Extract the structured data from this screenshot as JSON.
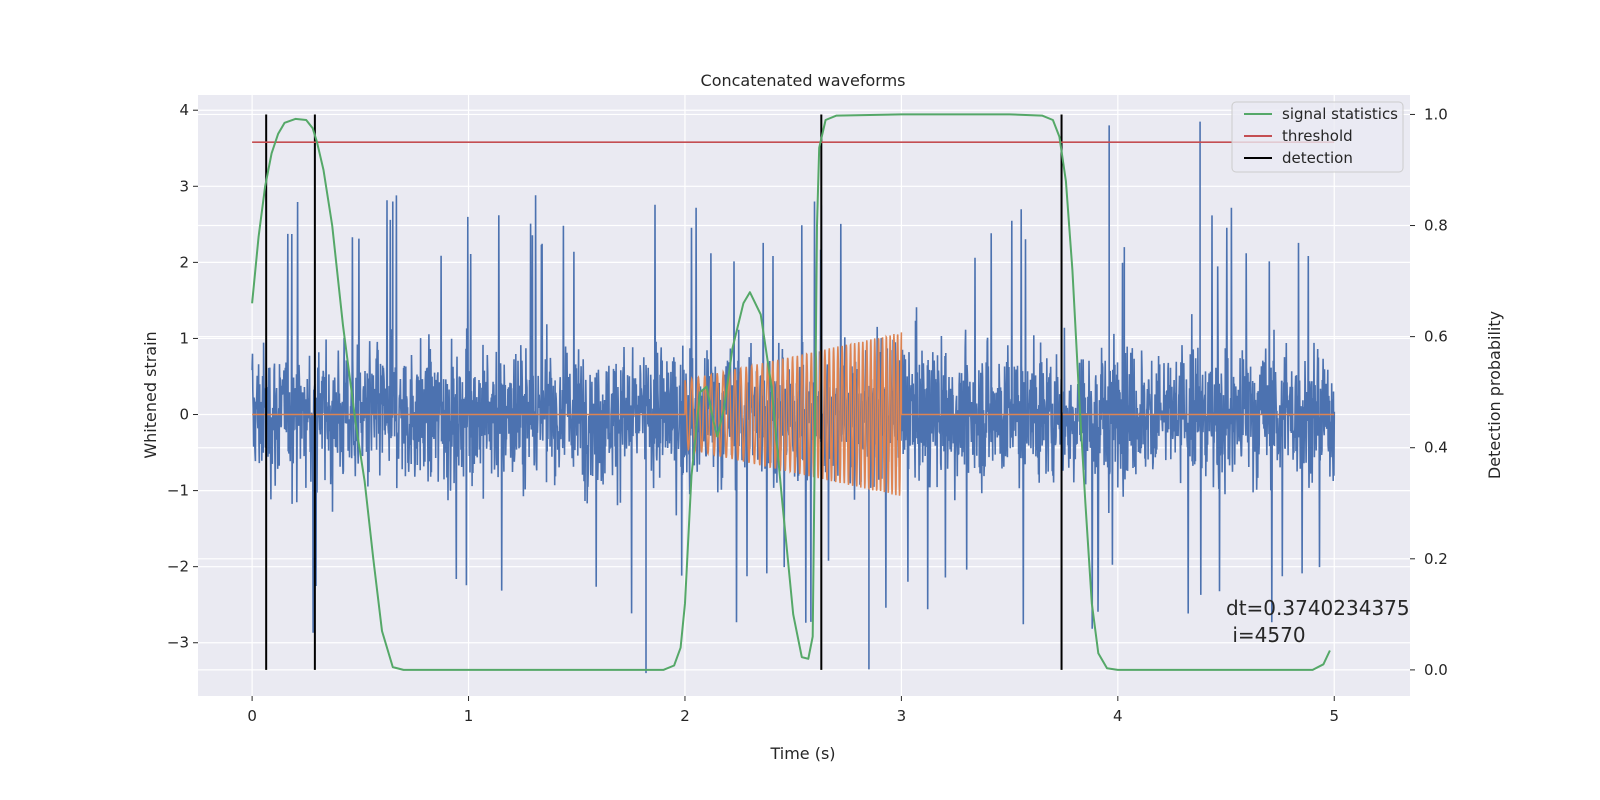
{
  "chart_data": {
    "type": "line",
    "title": "Concatenated waveforms",
    "xlabel": "Time (s)",
    "ylabel": "Whitened strain",
    "y2label": "Detection probability",
    "xlim": [
      -0.25,
      5.35
    ],
    "ylim": [
      -3.7,
      4.2
    ],
    "y2lim": [
      -0.047,
      1.035
    ],
    "xticks": [
      0,
      1,
      2,
      3,
      4,
      5
    ],
    "yticks": [
      -3,
      -2,
      -1,
      0,
      1,
      2,
      3,
      4
    ],
    "y2ticks": [
      0.0,
      0.2,
      0.4,
      0.6,
      0.8,
      1.0
    ],
    "xtick_labels": [
      "0",
      "1",
      "2",
      "3",
      "4",
      "5"
    ],
    "ytick_labels": [
      "−3",
      "−2",
      "−1",
      "0",
      "1",
      "2",
      "3",
      "4"
    ],
    "y2tick_labels": [
      "0.0",
      "0.2",
      "0.4",
      "0.6",
      "0.8",
      "1.0"
    ],
    "grid": true,
    "legend_position": "top-right",
    "series": [
      {
        "name": "",
        "kind": "noisy-strain",
        "color": "#4c72b0",
        "x_range": [
          0,
          5
        ],
        "typical_amplitude": 1.3,
        "spike_max": 3.85,
        "spike_min": -3.4
      },
      {
        "name": "",
        "kind": "chirp",
        "color": "#dd8452",
        "flat_value": 0,
        "chirp_start": 2.0,
        "chirp_end": 3.0,
        "amplitude_start": 0.45,
        "amplitude_end": 1.08,
        "cycles": 45
      },
      {
        "name": "signal statistics",
        "axis": "right",
        "color": "#55a868",
        "points": [
          [
            0.0,
            0.66
          ],
          [
            0.03,
            0.78
          ],
          [
            0.06,
            0.87
          ],
          [
            0.09,
            0.93
          ],
          [
            0.12,
            0.965
          ],
          [
            0.15,
            0.985
          ],
          [
            0.2,
            0.992
          ],
          [
            0.25,
            0.99
          ],
          [
            0.28,
            0.975
          ],
          [
            0.3,
            0.95
          ],
          [
            0.33,
            0.9
          ],
          [
            0.37,
            0.8
          ],
          [
            0.42,
            0.62
          ],
          [
            0.48,
            0.44
          ],
          [
            0.52,
            0.34
          ],
          [
            0.56,
            0.2
          ],
          [
            0.6,
            0.07
          ],
          [
            0.65,
            0.005
          ],
          [
            0.7,
            0.0
          ],
          [
            1.0,
            0.0
          ],
          [
            1.5,
            0.0
          ],
          [
            1.9,
            0.0
          ],
          [
            1.95,
            0.008
          ],
          [
            1.98,
            0.04
          ],
          [
            2.0,
            0.12
          ],
          [
            2.03,
            0.35
          ],
          [
            2.07,
            0.5
          ],
          [
            2.1,
            0.51
          ],
          [
            2.13,
            0.45
          ],
          [
            2.15,
            0.42
          ],
          [
            2.18,
            0.47
          ],
          [
            2.22,
            0.58
          ],
          [
            2.27,
            0.66
          ],
          [
            2.3,
            0.68
          ],
          [
            2.35,
            0.64
          ],
          [
            2.4,
            0.51
          ],
          [
            2.45,
            0.3
          ],
          [
            2.5,
            0.1
          ],
          [
            2.54,
            0.023
          ],
          [
            2.57,
            0.02
          ],
          [
            2.59,
            0.06
          ],
          [
            2.6,
            0.4
          ],
          [
            2.61,
            0.8
          ],
          [
            2.62,
            0.94
          ],
          [
            2.65,
            0.99
          ],
          [
            2.7,
            0.998
          ],
          [
            3.0,
            1.0
          ],
          [
            3.5,
            1.0
          ],
          [
            3.65,
            0.998
          ],
          [
            3.7,
            0.99
          ],
          [
            3.73,
            0.96
          ],
          [
            3.76,
            0.88
          ],
          [
            3.79,
            0.72
          ],
          [
            3.82,
            0.5
          ],
          [
            3.85,
            0.3
          ],
          [
            3.88,
            0.12
          ],
          [
            3.91,
            0.03
          ],
          [
            3.95,
            0.003
          ],
          [
            4.0,
            0.0
          ],
          [
            4.5,
            0.0
          ],
          [
            4.9,
            0.0
          ],
          [
            4.95,
            0.01
          ],
          [
            4.98,
            0.035
          ]
        ]
      },
      {
        "name": "threshold",
        "axis": "right",
        "color": "#c44e52",
        "x": [
          0,
          5
        ],
        "value": 0.95
      },
      {
        "name": "detection",
        "color": "#000000",
        "x": [
          0.065,
          0.29,
          2.63,
          3.74
        ]
      }
    ],
    "annotations": [
      "dt=0.3740234375",
      " i=4570"
    ]
  }
}
